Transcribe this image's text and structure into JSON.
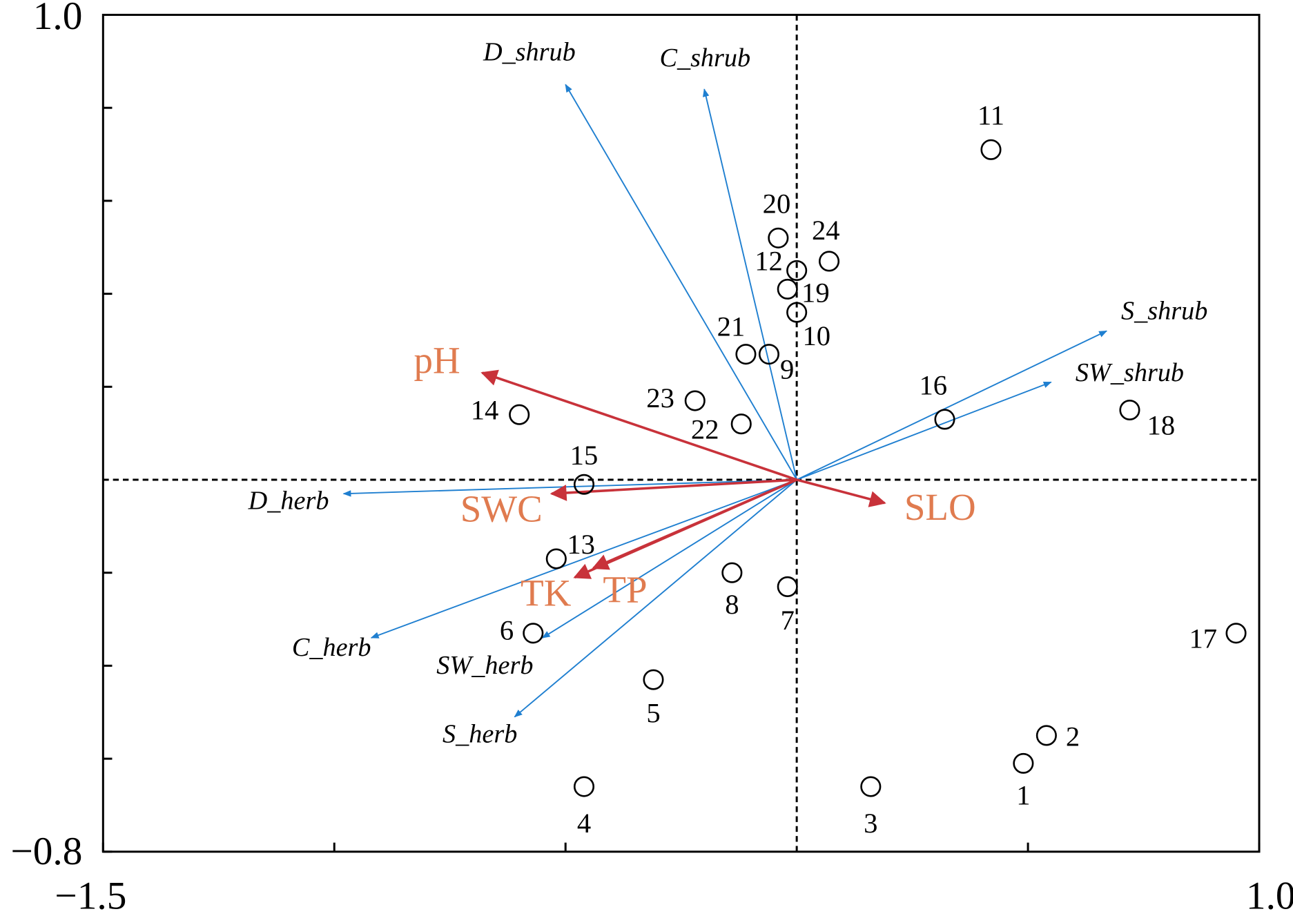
{
  "chart_data": {
    "type": "biplot",
    "xlim": [
      -1.5,
      1.0
    ],
    "ylim": [
      -0.8,
      1.0
    ],
    "xticks": [
      {
        "value": -1.5,
        "label": "−1.5"
      },
      {
        "value": -1.0,
        "label": null
      },
      {
        "value": -0.5,
        "label": null
      },
      {
        "value": 0,
        "label": null
      },
      {
        "value": 0.5,
        "label": null
      },
      {
        "value": 1.0,
        "label": "1.0"
      }
    ],
    "yticks": [
      {
        "value": -0.8,
        "label": "−0.8"
      },
      {
        "value": -0.6,
        "label": null
      },
      {
        "value": -0.4,
        "label": null
      },
      {
        "value": -0.2,
        "label": null
      },
      {
        "value": 0,
        "label": null
      },
      {
        "value": 0.2,
        "label": null
      },
      {
        "value": 0.4,
        "label": null
      },
      {
        "value": 0.6,
        "label": null
      },
      {
        "value": 0.8,
        "label": null
      },
      {
        "value": 1.0,
        "label": "1.0"
      }
    ],
    "sites": {
      "labels": [
        "1",
        "2",
        "3",
        "4",
        "5",
        "6",
        "7",
        "8",
        "9",
        "10",
        "11",
        "12",
        "13",
        "14",
        "15",
        "16",
        "17",
        "18",
        "19",
        "20",
        "21",
        "22",
        "23",
        "24"
      ],
      "x": [
        0.49,
        0.54,
        0.16,
        -0.46,
        -0.31,
        -0.57,
        -0.02,
        -0.14,
        -0.06,
        0.0,
        0.42,
        0.0,
        -0.52,
        -0.6,
        -0.46,
        0.32,
        0.95,
        0.72,
        -0.02,
        -0.04,
        -0.11,
        -0.12,
        -0.22,
        0.07
      ],
      "y": [
        -0.61,
        -0.55,
        -0.66,
        -0.66,
        -0.43,
        -0.33,
        -0.23,
        -0.2,
        0.27,
        0.36,
        0.71,
        0.45,
        -0.17,
        0.14,
        -0.01,
        0.13,
        -0.33,
        0.15,
        0.41,
        0.52,
        0.27,
        0.12,
        0.17,
        0.47
      ]
    },
    "species": {
      "color": "#1f7fd0",
      "names": [
        "D_shrub",
        "C_shrub",
        "S_shrub",
        "SW_shrub",
        "D_herb",
        "C_herb",
        "SW_herb",
        "S_herb"
      ],
      "x": [
        -0.5,
        -0.2,
        0.67,
        0.55,
        -0.98,
        -0.92,
        -0.55,
        -0.61
      ],
      "y": [
        0.85,
        0.84,
        0.32,
        0.21,
        -0.03,
        -0.34,
        -0.34,
        -0.51
      ]
    },
    "environment": {
      "color": "#c8323a",
      "label_color": "#e07b4f",
      "names": [
        "pH",
        "SWC",
        "TK",
        "TP",
        "SLO"
      ],
      "x": [
        -0.68,
        -0.53,
        -0.48,
        -0.44,
        0.19
      ],
      "y": [
        0.23,
        -0.03,
        -0.21,
        -0.19,
        -0.05
      ]
    }
  }
}
